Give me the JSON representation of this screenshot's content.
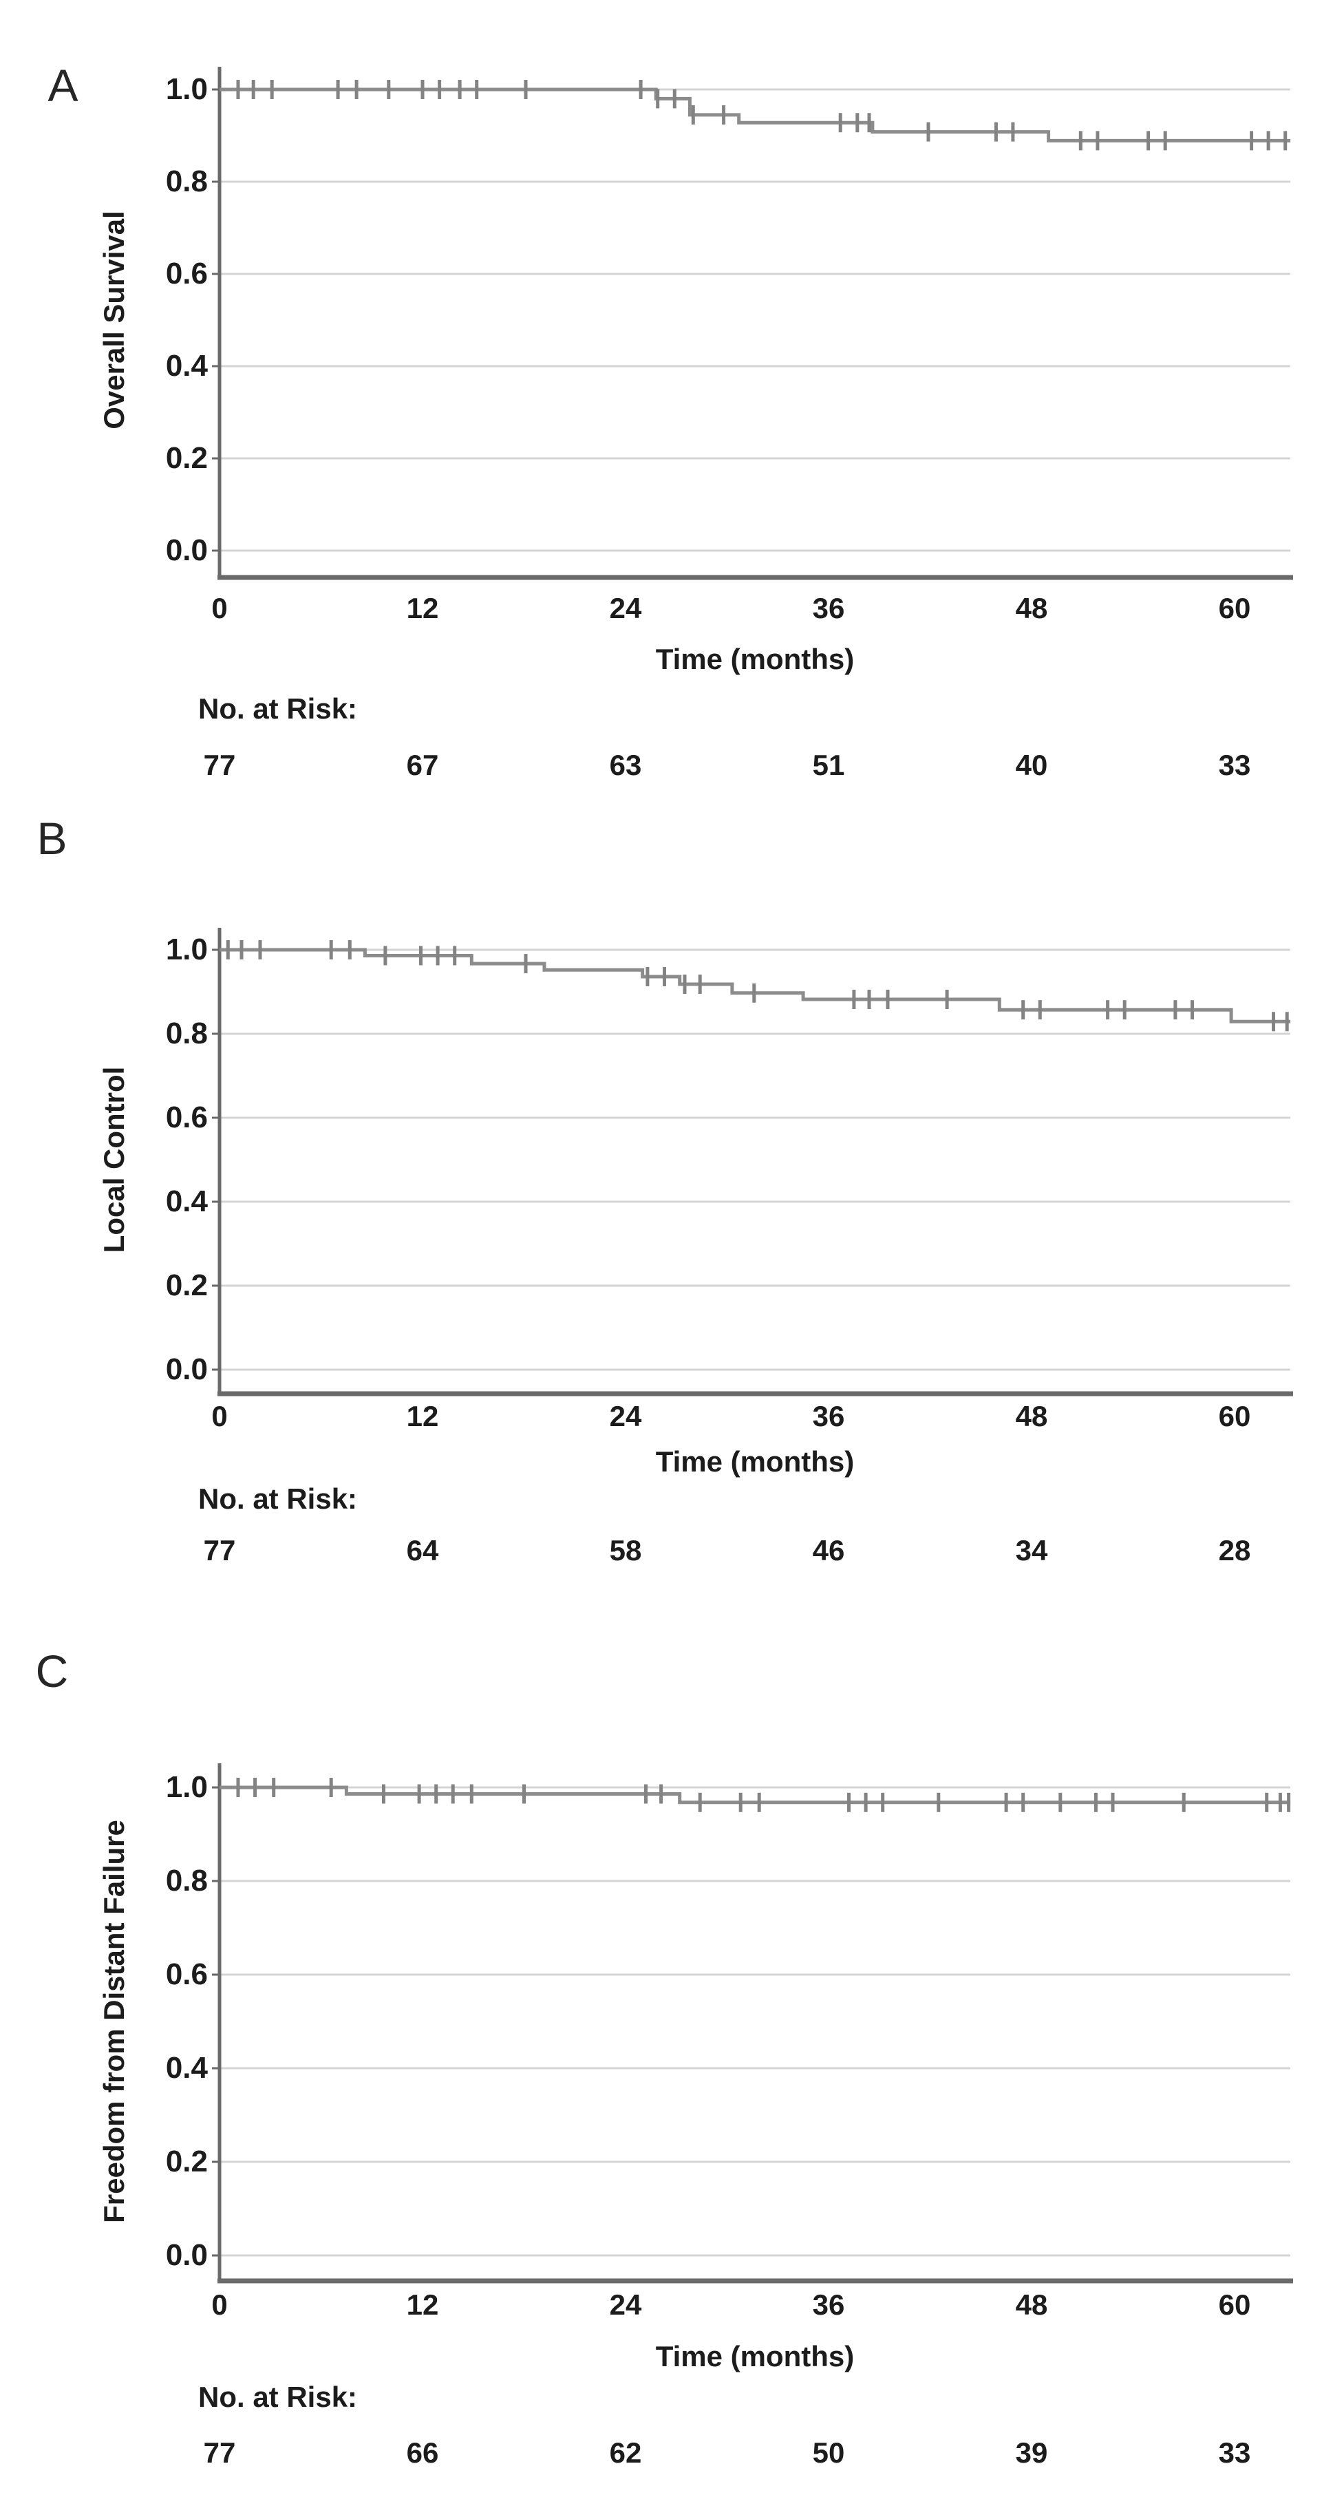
{
  "figure": {
    "background": "#ffffff",
    "colors": {
      "curve": "#8c8c8c",
      "censor": "#838383",
      "gridline": "#d4d4d4",
      "axis": "#6a6a6a",
      "text": "#1c1c1c"
    }
  },
  "chart_data": [
    {
      "type": "line",
      "subtype": "kaplan_meier_step",
      "panel_label": "A",
      "ylabel": "Overall Survival",
      "xlabel": "Time (months)",
      "risk_label": "No. at Risk:",
      "grid": true,
      "legend": "none",
      "xlim": [
        0,
        63.3
      ],
      "ylim": [
        0.0,
        1.0
      ],
      "xticks": [
        0,
        12,
        24,
        36,
        48,
        60
      ],
      "ytick_labels": [
        "1.0",
        "0.8",
        "0.6",
        "0.4",
        "0.2",
        "0.0"
      ],
      "number_at_risk": [
        77,
        67,
        63,
        51,
        40,
        33
      ],
      "end_time": 63.3,
      "steps": [
        [
          0,
          1.0
        ],
        [
          25.8,
          0.98
        ],
        [
          27.8,
          0.945
        ],
        [
          30.7,
          0.928
        ],
        [
          38.6,
          0.908
        ],
        [
          49.0,
          0.889
        ]
      ],
      "censor_marks": [
        [
          1.1,
          1.0
        ],
        [
          2.0,
          1.0
        ],
        [
          3.1,
          1.0
        ],
        [
          7.0,
          1.0
        ],
        [
          8.1,
          1.0
        ],
        [
          10.0,
          1.0
        ],
        [
          12.0,
          1.0
        ],
        [
          13.0,
          1.0
        ],
        [
          14.2,
          1.0
        ],
        [
          15.2,
          1.0
        ],
        [
          18.1,
          1.0
        ],
        [
          24.9,
          1.0
        ],
        [
          25.9,
          0.98
        ],
        [
          26.9,
          0.98
        ],
        [
          28.0,
          0.945
        ],
        [
          29.8,
          0.945
        ],
        [
          36.7,
          0.928
        ],
        [
          37.7,
          0.928
        ],
        [
          38.4,
          0.928
        ],
        [
          41.9,
          0.908
        ],
        [
          45.9,
          0.908
        ],
        [
          46.9,
          0.908
        ],
        [
          50.9,
          0.889
        ],
        [
          51.9,
          0.889
        ],
        [
          54.9,
          0.889
        ],
        [
          55.9,
          0.889
        ],
        [
          61.0,
          0.889
        ],
        [
          62.0,
          0.889
        ],
        [
          63.0,
          0.889
        ]
      ]
    },
    {
      "type": "line",
      "subtype": "kaplan_meier_step",
      "panel_label": "B",
      "ylabel": "Local Control",
      "xlabel": "Time (months)",
      "risk_label": "No. at Risk:",
      "grid": true,
      "legend": "none",
      "xlim": [
        0,
        63.3
      ],
      "ylim": [
        0.0,
        1.0
      ],
      "xticks": [
        0,
        12,
        24,
        36,
        48,
        60
      ],
      "ytick_labels": [
        "1.0",
        "0.8",
        "0.6",
        "0.4",
        "0.2",
        "0.0"
      ],
      "number_at_risk": [
        77,
        64,
        58,
        46,
        34,
        28
      ],
      "end_time": 63.3,
      "steps": [
        [
          0,
          1.0
        ],
        [
          8.6,
          0.986
        ],
        [
          14.9,
          0.967
        ],
        [
          19.2,
          0.952
        ],
        [
          25.0,
          0.936
        ],
        [
          27.2,
          0.918
        ],
        [
          30.3,
          0.897
        ],
        [
          34.5,
          0.882
        ],
        [
          46.1,
          0.857
        ],
        [
          59.8,
          0.829
        ]
      ],
      "censor_marks": [
        [
          0.5,
          1.0
        ],
        [
          1.3,
          1.0
        ],
        [
          2.4,
          1.0
        ],
        [
          6.6,
          1.0
        ],
        [
          7.7,
          1.0
        ],
        [
          9.8,
          0.986
        ],
        [
          11.9,
          0.986
        ],
        [
          12.9,
          0.986
        ],
        [
          13.9,
          0.986
        ],
        [
          18.1,
          0.967
        ],
        [
          25.3,
          0.936
        ],
        [
          26.3,
          0.936
        ],
        [
          27.5,
          0.918
        ],
        [
          28.4,
          0.918
        ],
        [
          31.6,
          0.897
        ],
        [
          37.5,
          0.882
        ],
        [
          38.4,
          0.882
        ],
        [
          39.5,
          0.882
        ],
        [
          43.0,
          0.882
        ],
        [
          47.5,
          0.857
        ],
        [
          48.5,
          0.857
        ],
        [
          52.5,
          0.857
        ],
        [
          53.5,
          0.857
        ],
        [
          56.5,
          0.857
        ],
        [
          57.5,
          0.857
        ],
        [
          62.3,
          0.829
        ],
        [
          63.1,
          0.829
        ]
      ]
    },
    {
      "type": "line",
      "subtype": "kaplan_meier_step",
      "panel_label": "C",
      "ylabel": "Freedom from Distant Failure",
      "xlabel": "Time (months)",
      "risk_label": "No. at Risk:",
      "grid": true,
      "legend": "none",
      "xlim": [
        0,
        63.3
      ],
      "ylim": [
        0.0,
        1.0
      ],
      "xticks": [
        0,
        12,
        24,
        36,
        48,
        60
      ],
      "ytick_labels": [
        "1.0",
        "0.8",
        "0.6",
        "0.4",
        "0.2",
        "0.0"
      ],
      "number_at_risk": [
        77,
        66,
        62,
        50,
        39,
        33
      ],
      "end_time": 63.3,
      "steps": [
        [
          0,
          1.0
        ],
        [
          7.5,
          0.986
        ],
        [
          27.2,
          0.968
        ]
      ],
      "censor_marks": [
        [
          1.1,
          1.0
        ],
        [
          2.1,
          1.0
        ],
        [
          3.2,
          1.0
        ],
        [
          6.6,
          1.0
        ],
        [
          9.7,
          0.986
        ],
        [
          11.8,
          0.986
        ],
        [
          12.8,
          0.986
        ],
        [
          13.8,
          0.986
        ],
        [
          14.9,
          0.986
        ],
        [
          18.0,
          0.986
        ],
        [
          25.2,
          0.986
        ],
        [
          26.1,
          0.986
        ],
        [
          28.4,
          0.968
        ],
        [
          30.8,
          0.968
        ],
        [
          31.9,
          0.968
        ],
        [
          37.2,
          0.968
        ],
        [
          38.2,
          0.968
        ],
        [
          39.2,
          0.968
        ],
        [
          42.5,
          0.968
        ],
        [
          46.5,
          0.968
        ],
        [
          47.5,
          0.968
        ],
        [
          49.7,
          0.968
        ],
        [
          51.8,
          0.968
        ],
        [
          52.8,
          0.968
        ],
        [
          57.0,
          0.968
        ],
        [
          61.9,
          0.968
        ],
        [
          62.7,
          0.968
        ],
        [
          63.2,
          0.968
        ]
      ]
    }
  ]
}
